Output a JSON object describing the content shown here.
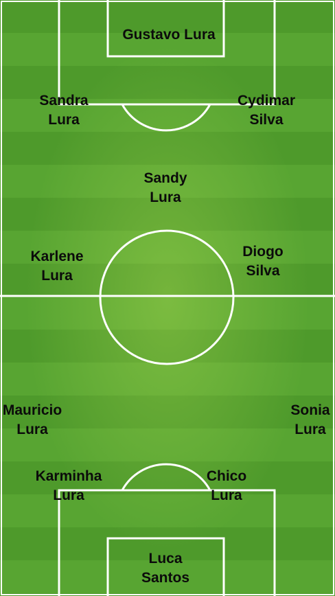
{
  "colors": {
    "pitch_stripe_dark": "#4e9a2b",
    "pitch_stripe_light": "#58a532",
    "line_color": "#ffffff",
    "name_text": "#0b0b0b"
  },
  "players": {
    "p1": {
      "line1": "Gustavo Lura",
      "line2": ""
    },
    "p2": {
      "line1": "Sandra",
      "line2": "Lura"
    },
    "p3": {
      "line1": "Cydimar",
      "line2": "Silva"
    },
    "p4": {
      "line1": "Sandy",
      "line2": "Lura"
    },
    "p5": {
      "line1": "Karlene",
      "line2": "Lura"
    },
    "p6": {
      "line1": "Diogo",
      "line2": "Silva"
    },
    "p7": {
      "line1": "Mauricio",
      "line2": "Lura"
    },
    "p8": {
      "line1": "Sonia",
      "line2": "Lura"
    },
    "p9": {
      "line1": "Karminha",
      "line2": "Lura"
    },
    "p10": {
      "line1": "Chico",
      "line2": "Lura"
    },
    "p11": {
      "line1": "Luca",
      "line2": "Santos"
    }
  }
}
